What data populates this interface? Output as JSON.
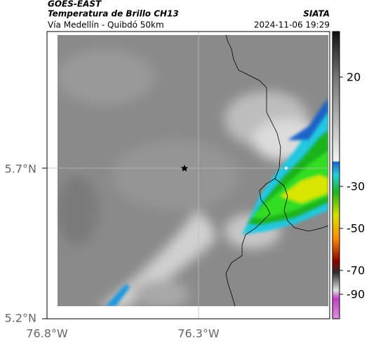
{
  "header": {
    "source": "GOES-EAST",
    "product": "Temperatura de Brillo CH13",
    "region": "Vía Medellín - Quibdó 50km",
    "brand": "SIATA",
    "timestamp": "2024-11-06 19:29"
  },
  "axes": {
    "lat_labels": [
      "5.7°N",
      "5.2°N"
    ],
    "lon_labels": [
      "76.8°W",
      "76.3°W"
    ]
  },
  "colorbar": {
    "ticks": [
      "20",
      "-30",
      "-50",
      "-70",
      "-90"
    ]
  }
}
